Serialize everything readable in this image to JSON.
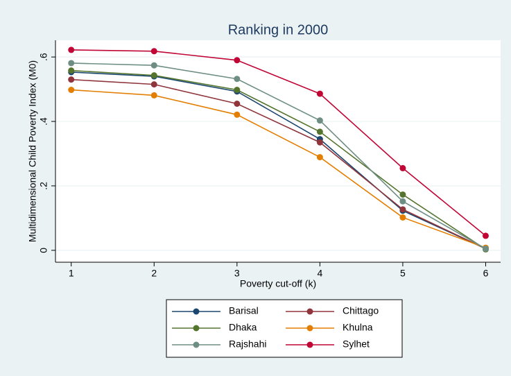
{
  "chart_data": {
    "type": "line",
    "title": "Ranking in 2000",
    "x_label": "Poverty cut-off (k)",
    "y_label": "Multidimensional Child Poverty Index (M0)",
    "x": [
      1,
      2,
      3,
      4,
      5,
      6
    ],
    "xlim": [
      0.81,
      6.18
    ],
    "xticks": [
      1,
      2,
      3,
      4,
      5,
      6
    ],
    "ylim": [
      -0.037,
      0.652
    ],
    "yticks": [
      0,
      {
        "value": 0.2,
        "label": ".2"
      },
      {
        "value": 0.4,
        "label": ".4"
      },
      {
        "value": 0.6,
        "label": ".6"
      }
    ],
    "grid": true,
    "legend": "bottom",
    "series": [
      {
        "name": "Barisal",
        "color": "#1a476f",
        "values": [
          0.553,
          0.54,
          0.493,
          0.345,
          0.123,
          0.005
        ]
      },
      {
        "name": "Chittago",
        "color": "#90353b",
        "values": [
          0.53,
          0.515,
          0.455,
          0.335,
          0.127,
          0.005
        ]
      },
      {
        "name": "Dhaka",
        "color": "#55752f",
        "values": [
          0.558,
          0.543,
          0.498,
          0.368,
          0.173,
          0.003
        ]
      },
      {
        "name": "Khulna",
        "color": "#e37e00",
        "values": [
          0.498,
          0.481,
          0.421,
          0.289,
          0.102,
          0.008
        ]
      },
      {
        "name": "Rajshahi",
        "color": "#6e8e84",
        "values": [
          0.581,
          0.574,
          0.532,
          0.403,
          0.152,
          0.005
        ]
      },
      {
        "name": "Sylhet",
        "color": "#c10534",
        "values": [
          0.622,
          0.618,
          0.59,
          0.486,
          0.255,
          0.045
        ]
      }
    ]
  }
}
